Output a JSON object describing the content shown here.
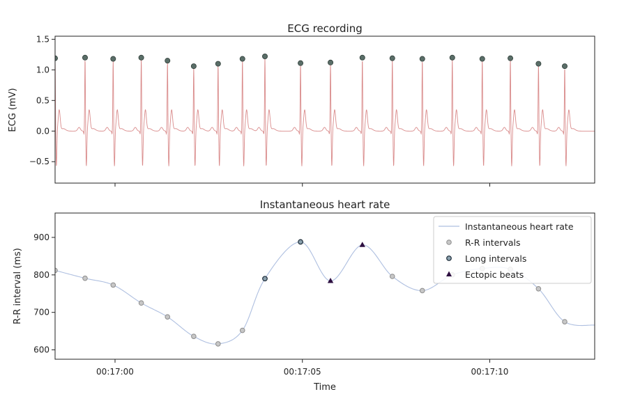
{
  "chart_data": [
    {
      "type": "line",
      "title": "ECG recording",
      "xlabel": "",
      "ylabel": "ECG (mV)",
      "x_unit": "seconds after 00:17:00",
      "xlim": [
        -1.6,
        12.8
      ],
      "ylim": [
        -0.85,
        1.55
      ],
      "yticks": [
        "−0.5",
        "0.0",
        "0.5",
        "1.0",
        "1.5"
      ],
      "ytick_values": [
        -0.5,
        0.0,
        0.5,
        1.0,
        1.5
      ],
      "grid": false,
      "colors": {
        "ecg": "#d98a8a",
        "peaks": "#5a6e68"
      },
      "r_peaks": {
        "t": [
          -1.6,
          -0.8,
          -0.05,
          0.7,
          1.4,
          2.1,
          2.75,
          3.4,
          4.0,
          4.95,
          5.75,
          6.6,
          7.4,
          8.2,
          9.0,
          9.8,
          10.55,
          11.3,
          12.0
        ],
        "mv": [
          1.19,
          1.2,
          1.18,
          1.2,
          1.15,
          1.06,
          1.1,
          1.18,
          1.22,
          1.11,
          1.12,
          1.2,
          1.19,
          1.18,
          1.2,
          1.18,
          1.19,
          1.1,
          1.06
        ]
      }
    },
    {
      "type": "line",
      "title": "Instantaneous heart rate",
      "xlabel": "Time",
      "ylabel": "R-R interval (ms)",
      "x_unit": "seconds after 00:17:00",
      "xlim": [
        -1.6,
        12.8
      ],
      "ylim": [
        575,
        965
      ],
      "yticks": [
        "600",
        "700",
        "800",
        "900"
      ],
      "ytick_values": [
        600,
        700,
        800,
        900
      ],
      "xticks": [
        "00:17:00",
        "00:17:05",
        "00:17:10"
      ],
      "xtick_values": [
        0,
        5,
        10
      ],
      "grid": false,
      "legend_position": "top-right",
      "legend": [
        "Instantaneous heart rate",
        "R-R intervals",
        "Long intervals",
        "Ectopic beats"
      ],
      "colors": {
        "curve": "#aebfe0",
        "rr": "#a8a8a8",
        "long": "#5a6e7d",
        "ectopic": "#2e0f40"
      },
      "rr_intervals": {
        "t": [
          -1.6,
          -0.8,
          -0.05,
          0.7,
          1.4,
          2.1,
          2.75,
          3.4,
          9.8,
          10.55,
          11.3,
          12.0
        ],
        "ms": [
          812,
          791,
          773,
          725,
          688,
          636,
          616,
          652,
          817,
          815,
          763,
          675
        ]
      },
      "long_intervals": {
        "t": [
          4.0,
          4.95
        ],
        "ms": [
          790,
          888
        ]
      },
      "ectopic_beats": {
        "t": [
          5.75,
          6.6
        ],
        "ms": [
          784,
          880
        ]
      },
      "between_points": {
        "t": [
          7.4,
          8.2,
          9.0
        ],
        "ms": [
          796,
          758,
          800
        ]
      }
    }
  ]
}
